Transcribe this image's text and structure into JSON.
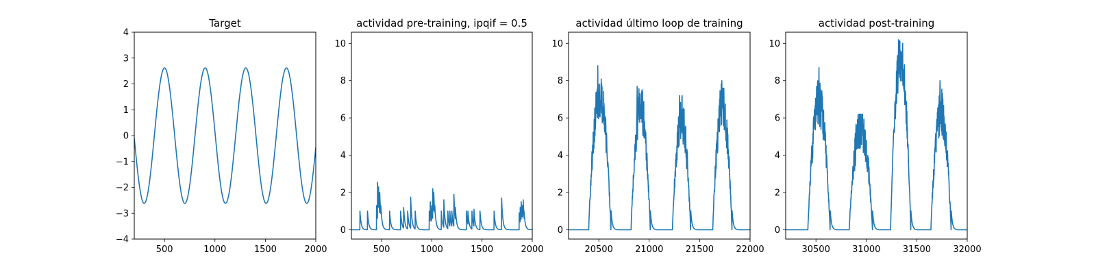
{
  "chart_data": [
    {
      "type": "line",
      "title": "Target",
      "xlim": [
        200,
        2000
      ],
      "ylim": [
        -4,
        4
      ],
      "xticks": [
        500,
        1000,
        1500,
        2000
      ],
      "yticks": [
        -4,
        -3,
        -2,
        -1,
        0,
        1,
        2,
        3,
        4
      ],
      "series": [
        {
          "kind": "sine",
          "amplitude": 2.62,
          "period": 403,
          "first_peak_x": 500,
          "color": "#1f77b4"
        }
      ]
    },
    {
      "type": "line",
      "title": "actividad pre-training, ipqif = 0.5",
      "xlim": [
        200,
        2000
      ],
      "ylim": [
        -0.5,
        10.6
      ],
      "xticks": [
        500,
        1000,
        1500,
        2000
      ],
      "yticks": [
        0,
        2,
        4,
        6,
        8,
        10
      ],
      "series": [
        {
          "kind": "spikes",
          "decay": 12,
          "color": "#1f77b4",
          "events": [
            [
              285,
              1.0
            ],
            [
              360,
              1.0
            ],
            [
              450,
              1.3
            ],
            [
              460,
              2.55
            ],
            [
              470,
              2.3
            ],
            [
              482,
              2.0
            ],
            [
              493,
              1.3
            ],
            [
              580,
              1.0
            ],
            [
              690,
              1.0
            ],
            [
              720,
              1.2
            ],
            [
              760,
              1.0
            ],
            [
              790,
              1.75
            ],
            [
              835,
              1.0
            ],
            [
              975,
              1.0
            ],
            [
              985,
              1.5
            ],
            [
              1000,
              1.3
            ],
            [
              1010,
              2.2
            ],
            [
              1020,
              2.0
            ],
            [
              1030,
              1.3
            ],
            [
              1095,
              1.0
            ],
            [
              1120,
              1.6
            ],
            [
              1160,
              1.0
            ],
            [
              1180,
              1.0
            ],
            [
              1200,
              1.0
            ],
            [
              1220,
              1.9
            ],
            [
              1235,
              1.2
            ],
            [
              1345,
              1.0
            ],
            [
              1360,
              1.0
            ],
            [
              1400,
              1.0
            ],
            [
              1420,
              1.1
            ],
            [
              1480,
              1.0
            ],
            [
              1620,
              1.0
            ],
            [
              1695,
              1.7
            ],
            [
              1870,
              0.9
            ],
            [
              1880,
              1.2
            ],
            [
              1890,
              1.5
            ],
            [
              1900,
              1.3
            ],
            [
              1910,
              1.6
            ],
            [
              1918,
              1.0
            ]
          ]
        }
      ]
    },
    {
      "type": "line",
      "title": "actividad último loop de training",
      "xlim": [
        20200,
        22000
      ],
      "ylim": [
        -0.5,
        10.6
      ],
      "xticks": [
        20500,
        21000,
        21500,
        22000
      ],
      "yticks": [
        0,
        2,
        4,
        6,
        8,
        10
      ],
      "series": [
        {
          "kind": "bursts",
          "baseline": 0,
          "color": "#1f77b4",
          "bursts": [
            {
              "start": 20400,
              "peak_x": 20490,
              "peak": 8.8,
              "end": 20620,
              "level": 7.3
            },
            {
              "start": 20820,
              "peak_x": 20880,
              "peak": 7.7,
              "end": 21010,
              "level": 6.6
            },
            {
              "start": 21230,
              "peak_x": 21300,
              "peak": 7.2,
              "end": 21410,
              "level": 6.0
            },
            {
              "start": 21630,
              "peak_x": 21720,
              "peak": 8.0,
              "end": 21820,
              "level": 6.7
            }
          ]
        }
      ]
    },
    {
      "type": "line",
      "title": "actividad post-training",
      "xlim": [
        30200,
        32000
      ],
      "ylim": [
        -0.5,
        10.6
      ],
      "xticks": [
        30500,
        31000,
        31500,
        32000
      ],
      "yticks": [
        0,
        2,
        4,
        6,
        8,
        10
      ],
      "series": [
        {
          "kind": "bursts",
          "baseline": 0,
          "color": "#1f77b4",
          "bursts": [
            {
              "start": 30420,
              "peak_x": 30530,
              "peak": 8.7,
              "end": 30640,
              "level": 6.8
            },
            {
              "start": 30830,
              "peak_x": 30960,
              "peak": 6.2,
              "end": 31060,
              "level": 5.6
            },
            {
              "start": 31240,
              "peak_x": 31320,
              "peak": 10.2,
              "end": 31440,
              "level": 9.2
            },
            {
              "start": 31640,
              "peak_x": 31730,
              "peak": 8.0,
              "end": 31840,
              "level": 6.3
            }
          ]
        }
      ]
    }
  ]
}
